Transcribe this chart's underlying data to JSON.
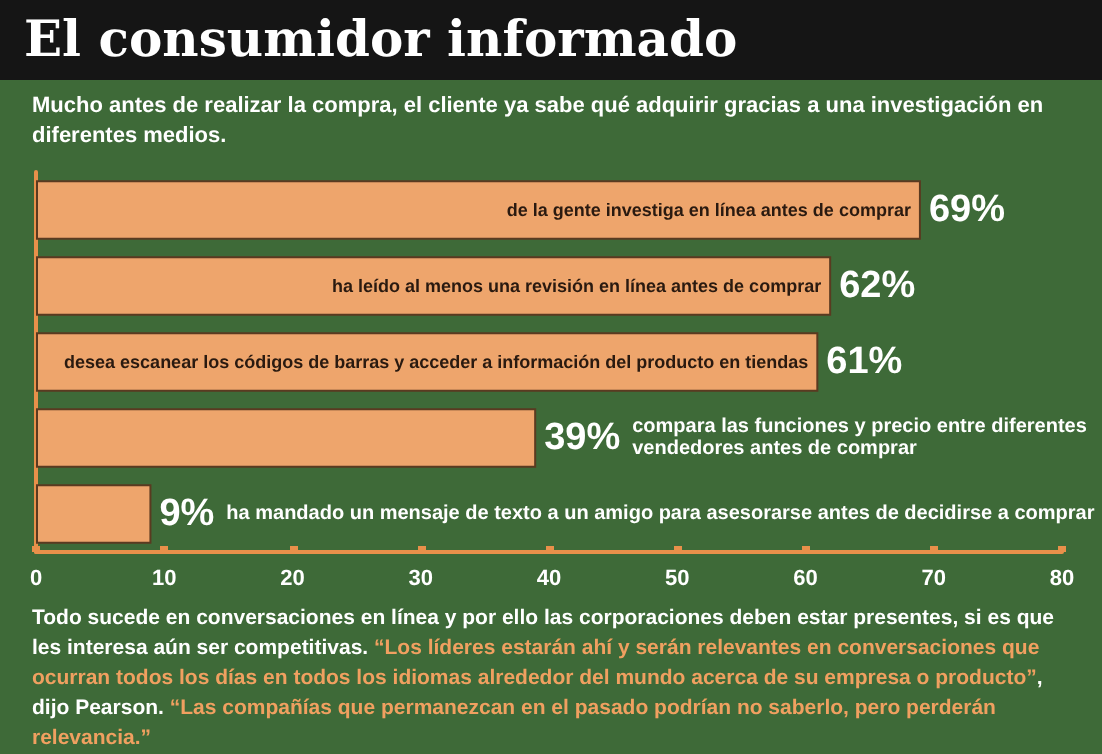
{
  "chart_data": {
    "type": "bar",
    "orientation": "horizontal",
    "title": "El consumidor informado",
    "subtitle": "Mucho antes de realizar la compra, el cliente ya sabe qué adquirir gracias a una investigación en diferentes medios.",
    "categories": [
      "de la gente investiga en línea antes de comprar",
      "ha leído al menos una revisión en línea antes de comprar",
      "desea escanear los códigos de barras y acceder a información del producto en tiendas",
      "compara las funciones y precio entre diferentes vendedores antes de comprar",
      "ha mandado un mensaje de texto a un amigo para asesorarse antes de decidirse a comprar"
    ],
    "values": [
      69,
      62,
      61,
      39,
      9
    ],
    "value_labels": [
      "69%",
      "62%",
      "61%",
      "39%",
      "9%"
    ],
    "color": "#eea56c",
    "xlim": [
      0,
      80
    ],
    "xticks": [
      0,
      10,
      20,
      30,
      40,
      50,
      60,
      70,
      80
    ],
    "annotations": [
      "Todo sucede en conversaciones en línea y por ello las corporaciones deben estar presentes, si es que les interesa aún ser competitivas. ",
      "“Los líderes estarán ahí y serán relevantes en conversaciones que ocurran todos los días en todos los idiomas alrededor del mundo acerca de su empresa o producto”",
      ", dijo Pearson. ",
      "“Las compañías que permanezcan en el pasado podrían no saberlo, pero perderán relevancia.”"
    ]
  }
}
